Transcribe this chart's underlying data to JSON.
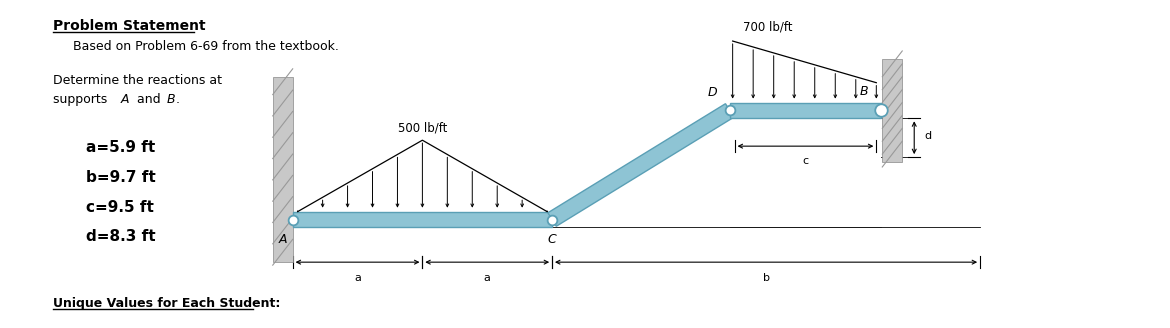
{
  "title": "Problem Statement",
  "subtitle": "Based on Problem 6-69 from the textbook.",
  "description_line1": "Determine the reactions at",
  "description_line2": "supports A  and B.",
  "footer": "Unique Values for Each Student:",
  "load1_label": "500 lb/ft",
  "load2_label": "700 lb/ft",
  "dim_a": "a",
  "dim_b": "b",
  "dim_c": "c",
  "dim_d": "d",
  "label_A": "A",
  "label_B": "B",
  "label_C": "C",
  "label_D": "D",
  "param_a": "a=5.9 ft",
  "param_b": "b=9.7 ft",
  "param_c": "c=9.5 ft",
  "param_d": "d=8.3 ft",
  "beam_color": "#8ec4d4",
  "beam_edge": "#5a9fb5",
  "wall_color": "#c8c8c8",
  "wall_hatch": "#999999",
  "bg_color": "#ffffff",
  "text_color": "#000000"
}
